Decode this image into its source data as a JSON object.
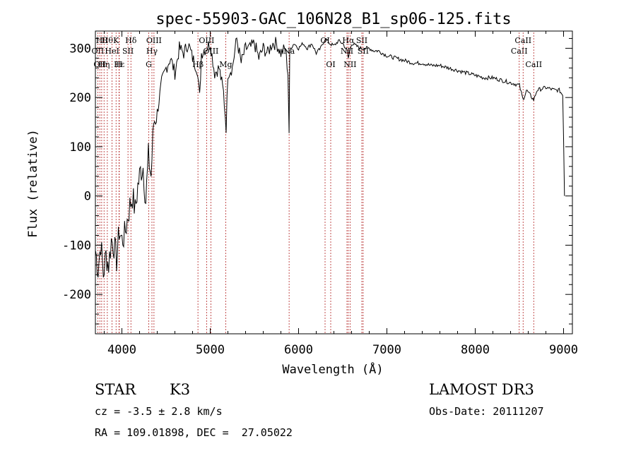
{
  "chart_data": {
    "type": "line",
    "title": "spec-55903-GAC_106N28_B1_sp06-125.fits",
    "xlabel": "Wavelength (Å)",
    "ylabel": "Flux (relative)",
    "xlim": [
      3700,
      9100
    ],
    "ylim": [
      -280,
      335
    ],
    "x_ticks": [
      4000,
      5000,
      6000,
      7000,
      8000,
      9000
    ],
    "y_ticks": [
      -200,
      -100,
      0,
      100,
      200,
      300
    ],
    "series": [
      {
        "name": "spectrum",
        "x": [
          3700,
          3730,
          3760,
          3790,
          3820,
          3850,
          3880,
          3910,
          3940,
          3970,
          4000,
          4030,
          4060,
          4090,
          4120,
          4150,
          4180,
          4210,
          4240,
          4270,
          4300,
          4330,
          4360,
          4400,
          4450,
          4500,
          4550,
          4600,
          4650,
          4700,
          4750,
          4800,
          4850,
          4880,
          4900,
          4950,
          5000,
          5050,
          5100,
          5150,
          5180,
          5200,
          5250,
          5300,
          5350,
          5400,
          5450,
          5500,
          5550,
          5600,
          5650,
          5700,
          5750,
          5800,
          5850,
          5880,
          5893,
          5900,
          5910,
          5950,
          6000,
          6050,
          6100,
          6150,
          6200,
          6250,
          6300,
          6350,
          6400,
          6450,
          6500,
          6550,
          6563,
          6600,
          6650,
          6700,
          6750,
          6800,
          6850,
          6900,
          6950,
          7000,
          7100,
          7200,
          7300,
          7400,
          7500,
          7600,
          7700,
          7800,
          7900,
          8000,
          8100,
          8200,
          8300,
          8400,
          8500,
          8542,
          8580,
          8662,
          8700,
          8800,
          8900,
          8950,
          8990,
          9000,
          9010
        ],
        "y": [
          -110,
          -150,
          -95,
          -160,
          -120,
          -140,
          -90,
          -100,
          -130,
          -70,
          -90,
          -80,
          -50,
          -20,
          0,
          -30,
          20,
          50,
          60,
          -10,
          80,
          40,
          150,
          170,
          230,
          260,
          280,
          250,
          300,
          290,
          310,
          280,
          260,
          200,
          290,
          300,
          310,
          250,
          260,
          210,
          140,
          250,
          260,
          320,
          270,
          300,
          300,
          310,
          280,
          300,
          290,
          310,
          310,
          290,
          300,
          250,
          130,
          290,
          300,
          310,
          300,
          310,
          300,
          310,
          290,
          300,
          320,
          310,
          305,
          315,
          310,
          295,
          280,
          310,
          305,
          300,
          300,
          300,
          295,
          295,
          290,
          285,
          280,
          275,
          270,
          270,
          265,
          265,
          260,
          255,
          250,
          245,
          240,
          240,
          235,
          230,
          225,
          195,
          215,
          195,
          215,
          220,
          215,
          215,
          205,
          120,
          0
        ]
      }
    ],
    "line_markers": [
      {
        "x": 3727,
        "label": "OII",
        "row": 1
      },
      {
        "x": 3750,
        "label": "OII",
        "row": 2
      },
      {
        "x": 3771,
        "label": "Hθ",
        "row": 0
      },
      {
        "x": 3798,
        "label": "Hη",
        "row": 2
      },
      {
        "x": 3835,
        "label": "Hθ",
        "row": 0
      },
      {
        "x": 3889,
        "label": "HeI",
        "row": 1
      },
      {
        "x": 3934,
        "label": "K",
        "row": 0
      },
      {
        "x": 3970,
        "label": "Hε",
        "row": 2
      },
      {
        "x": 3968,
        "label": "H",
        "row": 2
      },
      {
        "x": 4069,
        "label": "SII",
        "row": 1
      },
      {
        "x": 4102,
        "label": "Hδ",
        "row": 0
      },
      {
        "x": 4304,
        "label": "G",
        "row": 2
      },
      {
        "x": 4340,
        "label": "Hγ",
        "row": 1
      },
      {
        "x": 4363,
        "label": "OIII",
        "row": 0
      },
      {
        "x": 4861,
        "label": "Hβ",
        "row": 2
      },
      {
        "x": 4959,
        "label": "OIII",
        "row": 0
      },
      {
        "x": 5007,
        "label": "OIII",
        "row": 1
      },
      {
        "x": 5175,
        "label": "Mg",
        "row": 2
      },
      {
        "x": 5893,
        "label": "Na",
        "row": 1
      },
      {
        "x": 6300,
        "label": "OI",
        "row": 0
      },
      {
        "x": 6364,
        "label": "OI",
        "row": 2
      },
      {
        "x": 6548,
        "label": "NII",
        "row": 1
      },
      {
        "x": 6563,
        "label": "Hα",
        "row": 0
      },
      {
        "x": 6583,
        "label": "NII",
        "row": 2
      },
      {
        "x": 6716,
        "label": "SII",
        "row": 0
      },
      {
        "x": 6731,
        "label": "SII",
        "row": 1
      },
      {
        "x": 8498,
        "label": "CaII",
        "row": 1
      },
      {
        "x": 8542,
        "label": "CaII",
        "row": 0
      },
      {
        "x": 8662,
        "label": "CaII",
        "row": 2
      }
    ]
  },
  "info": {
    "object_class": "STAR",
    "subclass": "K3",
    "survey": "LAMOST DR3",
    "redshift": "cz = -3.5 ± 2.8 km/s",
    "obs_date": "Obs-Date: 20111207",
    "coords": "RA = 109.01898, DEC =  27.05022"
  }
}
